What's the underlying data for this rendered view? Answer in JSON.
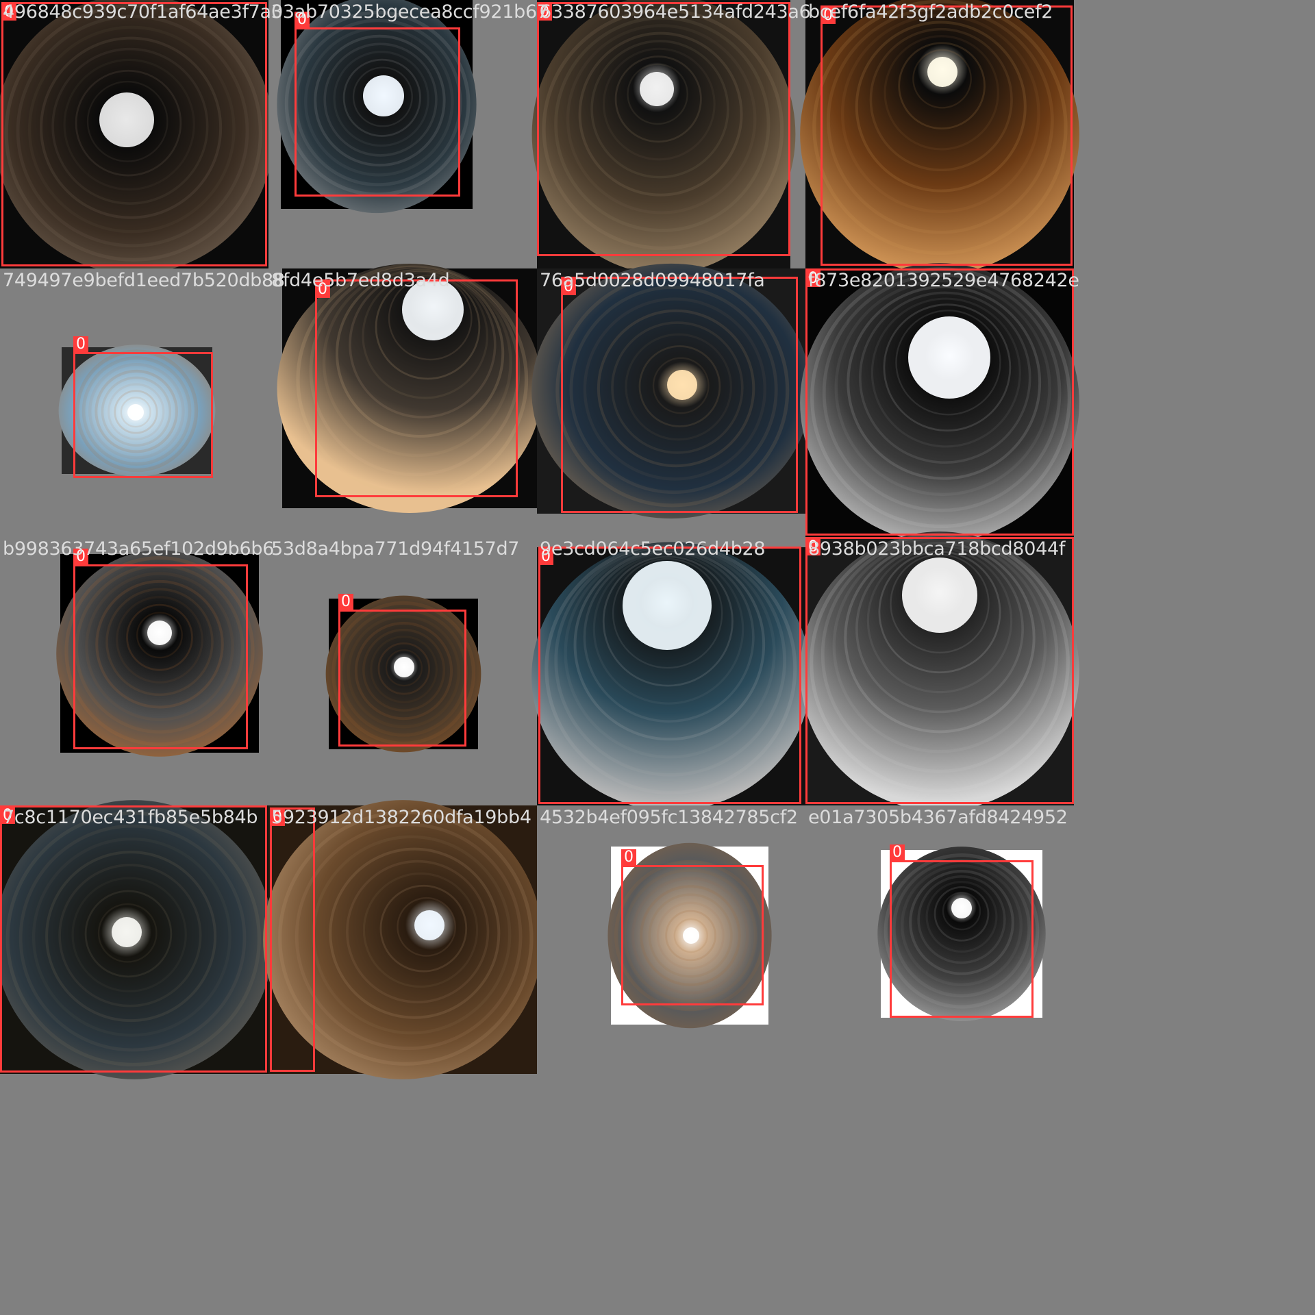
{
  "accent_color": "#ff3b3b",
  "tiles": [
    {
      "filename": "496848c939c70f1af64ae3f7a3",
      "label": "0"
    },
    {
      "filename": "03ab70325bgecea8ccf921b67",
      "label": "0"
    },
    {
      "filename": "63387603964e5134afd243a6",
      "label": "0"
    },
    {
      "filename": "bcef6fa42f3gf2adb2c0cef2",
      "label": "0"
    },
    {
      "filename": "749497e9befd1eed7b520db88",
      "label": "0"
    },
    {
      "filename": "8fd4e5b7ed8d3a4d",
      "label": "0"
    },
    {
      "filename": "76a5d0028d09948017fa",
      "label": "0"
    },
    {
      "filename": "f873e8201392529e4768242e",
      "label": "0"
    },
    {
      "filename": "b998363743a65ef102d9b6b6",
      "label": "0"
    },
    {
      "filename": "53d8a4bpa771d94f4157d7",
      "label": "0"
    },
    {
      "filename": "9e3cd064c5ec026d4b28",
      "label": "0"
    },
    {
      "filename": "8938b023bbca718bcd8044f",
      "label": "0"
    },
    {
      "filename": "7c8c1170ec431fb85e5b84b",
      "label": "0"
    },
    {
      "filename": "5923912d1382260dfa19bb4",
      "label": "0"
    },
    {
      "filename": "4532b4ef095fc13842785cf2",
      "label": "0"
    },
    {
      "filename": "e01a7305b4367afd8424952",
      "label": "0"
    }
  ]
}
